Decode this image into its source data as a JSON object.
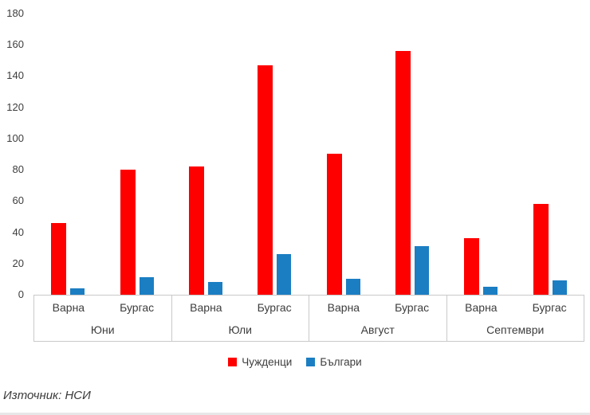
{
  "chart_data": {
    "type": "bar",
    "title": "",
    "xlabel": "",
    "ylabel": "",
    "groups": [
      "Юни",
      "Юли",
      "Август",
      "Септември"
    ],
    "subcategories": [
      "Варна",
      "Бургас"
    ],
    "series": [
      {
        "name": "Чужденци",
        "color": "#fe0000",
        "values": [
          [
            46,
            80
          ],
          [
            82,
            147
          ],
          [
            90,
            156
          ],
          [
            36,
            58
          ]
        ]
      },
      {
        "name": "Българи",
        "color": "#1b7ec2",
        "values": [
          [
            4,
            11
          ],
          [
            8,
            26
          ],
          [
            10,
            31
          ],
          [
            5,
            9
          ]
        ]
      }
    ],
    "ylim": [
      0,
      180
    ],
    "ytick_step": 20,
    "yticks": [
      0,
      20,
      40,
      60,
      80,
      100,
      120,
      140,
      160,
      180
    ],
    "grid": false,
    "legend_position": "bottom"
  },
  "source_note": "Източник: НСИ",
  "colors": {
    "axis_line": "#c9c9c9",
    "text": "#3d3d3d",
    "background": "#ffffff"
  }
}
